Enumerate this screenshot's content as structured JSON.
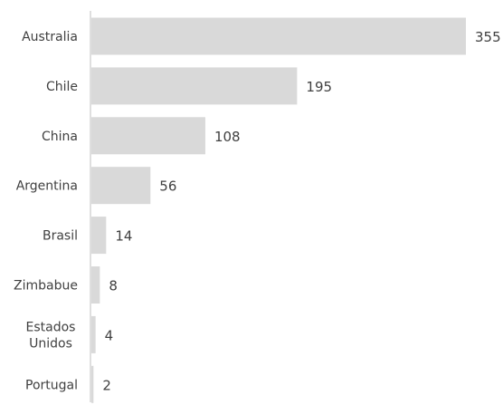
{
  "chart_data": {
    "type": "bar",
    "orientation": "horizontal",
    "categories": [
      [
        "Australia"
      ],
      [
        "Chile"
      ],
      [
        "China"
      ],
      [
        "Argentina"
      ],
      [
        "Brasil"
      ],
      [
        "Zimbabue"
      ],
      [
        "Estados",
        "Unidos"
      ],
      [
        "Portugal"
      ]
    ],
    "values": [
      355,
      195,
      108,
      56,
      14,
      8,
      4,
      2
    ],
    "value_labels": [
      "355",
      "195",
      "108",
      "56",
      "14",
      "8",
      "4",
      "2"
    ],
    "xlim": [
      0,
      355
    ],
    "grid": false,
    "legend": "none",
    "title": "",
    "xlabel": "",
    "ylabel": "",
    "colors": {
      "bar": "#d9d9d9",
      "axis": "#bfbfbf",
      "text": "#404040"
    }
  }
}
